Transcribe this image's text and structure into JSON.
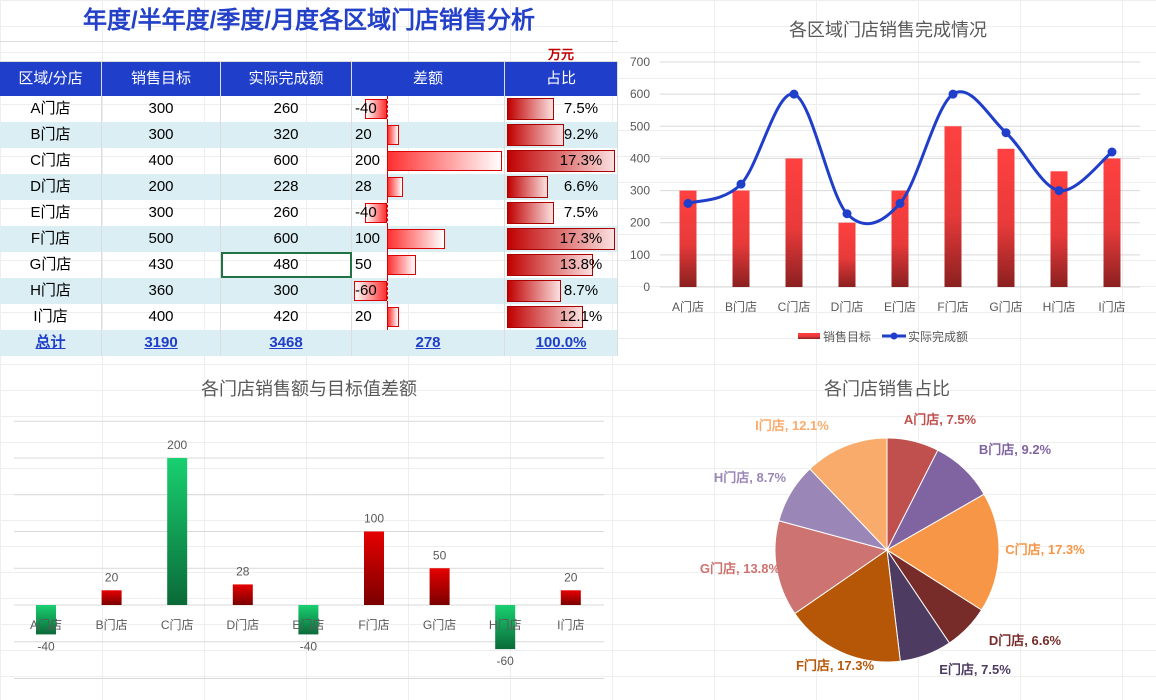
{
  "table": {
    "title": "年度/半年度/季度/月度各区域门店销售分析",
    "unit": "万元",
    "headers": [
      "区域/分店",
      "销售目标",
      "实际完成额",
      "差额",
      "占比"
    ],
    "rows": [
      [
        "A门店",
        "300",
        "260",
        "-40",
        "7.5%"
      ],
      [
        "B门店",
        "300",
        "320",
        "20",
        "9.2%"
      ],
      [
        "C门店",
        "400",
        "600",
        "200",
        "17.3%"
      ],
      [
        "D门店",
        "200",
        "228",
        "28",
        "6.6%"
      ],
      [
        "E门店",
        "300",
        "260",
        "-40",
        "7.5%"
      ],
      [
        "F门店",
        "500",
        "600",
        "100",
        "17.3%"
      ],
      [
        "G门店",
        "430",
        "480",
        "50",
        "13.8%"
      ],
      [
        "H门店",
        "360",
        "300",
        "-60",
        "8.7%"
      ],
      [
        "I门店",
        "400",
        "420",
        "20",
        "12.1%"
      ]
    ],
    "total": [
      "总计",
      "3190",
      "3468",
      "278",
      "100.0%"
    ]
  },
  "chart_data": [
    {
      "type": "bar+line",
      "title": "各区域门店销售完成情况",
      "categories": [
        "A门店",
        "B门店",
        "C门店",
        "D门店",
        "E门店",
        "F门店",
        "G门店",
        "H门店",
        "I门店"
      ],
      "series": [
        {
          "name": "销售目标",
          "type": "bar",
          "values": [
            300,
            300,
            400,
            200,
            300,
            500,
            430,
            360,
            400
          ]
        },
        {
          "name": "实际完成额",
          "type": "line",
          "smooth": true,
          "values": [
            260,
            320,
            600,
            228,
            260,
            600,
            480,
            300,
            420
          ]
        }
      ],
      "ylim": [
        0,
        700
      ],
      "yticks": [
        0,
        100,
        200,
        300,
        400,
        500,
        600,
        700
      ],
      "grid": true,
      "legend": "bottom",
      "colors": {
        "bar": "#e83a3a",
        "line": "#1f3ec9"
      }
    },
    {
      "type": "bar",
      "title": "各门店销售额与目标值差额",
      "categories": [
        "A门店",
        "B门店",
        "C门店",
        "D门店",
        "E门店",
        "F门店",
        "G门店",
        "H门店",
        "I门店"
      ],
      "values": [
        -40,
        20,
        200,
        28,
        -40,
        100,
        50,
        -60,
        20
      ],
      "ylim": [
        -100,
        250
      ],
      "grid": true,
      "colors": {
        "positive": "#cc0000",
        "negative": "#19c96a"
      }
    },
    {
      "type": "pie",
      "title": "各门店销售占比",
      "labels": [
        "A门店",
        "B门店",
        "C门店",
        "D门店",
        "E门店",
        "F门店",
        "G门店",
        "H门店",
        "I门店"
      ],
      "values": [
        7.5,
        9.2,
        17.3,
        6.6,
        7.5,
        17.3,
        13.8,
        8.7,
        12.1
      ],
      "data_labels": [
        "A门店, 7.5%",
        "B门店, 9.2%",
        "C门店, 17.3%",
        "D门店, 6.6%",
        "E门店, 7.5%",
        "F门店, 17.3%",
        "G门店, 13.8%",
        "H门店, 8.7%",
        "I门店, 12.1%"
      ],
      "colors": [
        "#c0504d",
        "#8064a2",
        "#f79646",
        "#772c2a",
        "#4d3b62",
        "#b65708",
        "#cd7371",
        "#9b87b7",
        "#f9ab6b"
      ]
    }
  ]
}
